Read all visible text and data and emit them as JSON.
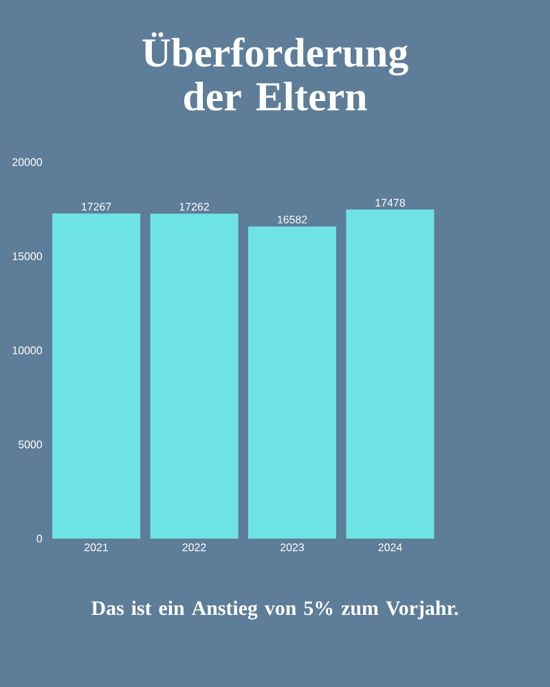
{
  "chart_data": {
    "type": "bar",
    "title": "Überforderung der Eltern",
    "categories": [
      "2021",
      "2022",
      "2023",
      "2024"
    ],
    "values": [
      17267,
      17262,
      16582,
      17478
    ],
    "color": "#6ee3e6",
    "ylim": [
      0,
      20000
    ],
    "yticks": [
      0,
      5000,
      10000,
      15000,
      20000
    ],
    "data_labels": true,
    "annotations": [
      "Das ist ein Anstieg von 5% zum Vorjahr."
    ]
  }
}
